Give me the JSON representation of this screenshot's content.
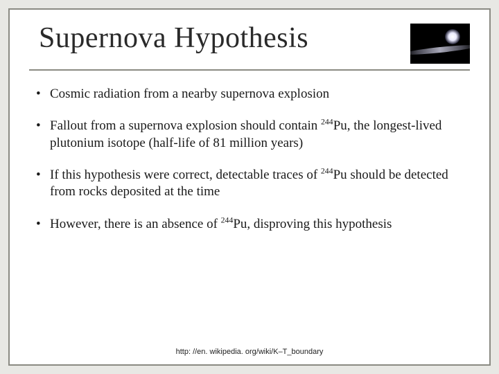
{
  "slide": {
    "title": "Supernova Hypothesis",
    "title_fontsize": 42,
    "title_color": "#2a2a2a",
    "border_color": "#8a8a82",
    "divider_color": "#8a8a82",
    "background_color": "#ffffff",
    "page_background": "#e8e8e4",
    "image": {
      "semantic": "supernova-galaxy-photo",
      "background": "#000000",
      "glow_color": "#ffffff",
      "streak_colors": [
        "#4a4a55",
        "#a8a8b8"
      ]
    },
    "bullets": [
      {
        "html": "Cosmic radiation from a nearby supernova explosion"
      },
      {
        "html": "Fallout from a supernova explosion should contain <sup>244</sup>Pu, the longest-lived plutonium isotope (half-life of 81 million years)"
      },
      {
        "html": " If this hypothesis were correct, detectable traces of <sup>244</sup>Pu should be detected from rocks deposited at the time"
      },
      {
        "html": " However, there is an absence of <sup>244</sup>Pu, disproving this hypothesis"
      }
    ],
    "bullet_fontsize": 19,
    "bullet_color": "#1a1a1a",
    "footer": "http: //en. wikipedia. org/wiki/K–T_boundary",
    "footer_fontsize": 11,
    "footer_color": "#222222"
  }
}
